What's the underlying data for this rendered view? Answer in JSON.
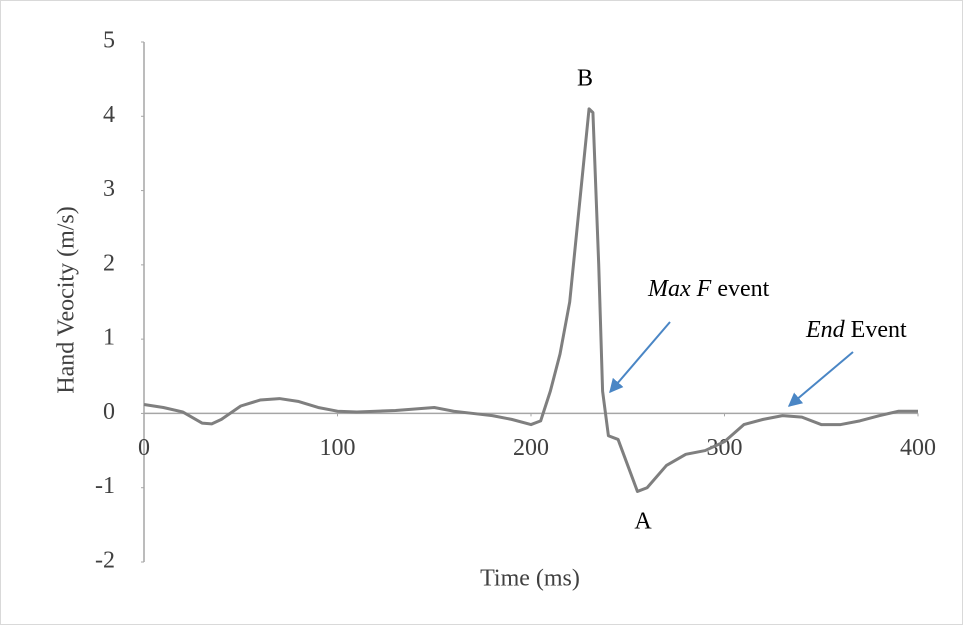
{
  "chart_data": {
    "type": "line",
    "xlabel": "Time (ms)",
    "ylabel": "Hand Veocity (m/s)",
    "x": [
      0,
      10,
      20,
      30,
      35,
      40,
      50,
      60,
      70,
      80,
      90,
      100,
      110,
      120,
      130,
      140,
      150,
      160,
      170,
      180,
      190,
      200,
      205,
      210,
      215,
      220,
      225,
      230,
      232,
      235,
      237,
      240,
      245,
      250,
      255,
      260,
      270,
      280,
      290,
      300,
      310,
      320,
      330,
      340,
      350,
      360,
      370,
      380,
      390,
      400
    ],
    "series": [
      {
        "color": "#7f7f7f",
        "values": [
          0.12,
          0.08,
          0.02,
          -0.13,
          -0.14,
          -0.08,
          0.1,
          0.18,
          0.2,
          0.16,
          0.08,
          0.03,
          0.02,
          0.03,
          0.04,
          0.06,
          0.08,
          0.03,
          0.0,
          -0.03,
          -0.08,
          -0.15,
          -0.1,
          0.3,
          0.8,
          1.5,
          2.8,
          4.1,
          4.05,
          2.0,
          0.3,
          -0.3,
          -0.35,
          -0.7,
          -1.05,
          -1.0,
          -0.7,
          -0.55,
          -0.5,
          -0.38,
          -0.15,
          -0.08,
          -0.03,
          -0.05,
          -0.15,
          -0.15,
          -0.1,
          -0.03,
          0.03,
          0.03
        ]
      }
    ],
    "xlim": [
      0,
      400
    ],
    "xticks": [
      0,
      100,
      200,
      300,
      400
    ],
    "ylim": [
      -2,
      5
    ],
    "yticks": [
      -2,
      -1,
      0,
      1,
      2,
      3,
      4,
      5
    ],
    "annotations": [
      {
        "text": "B"
      },
      {
        "text": "A"
      },
      {
        "italic": "Max F",
        "text": "event"
      },
      {
        "italic": "End",
        "text": "Event"
      }
    ]
  }
}
